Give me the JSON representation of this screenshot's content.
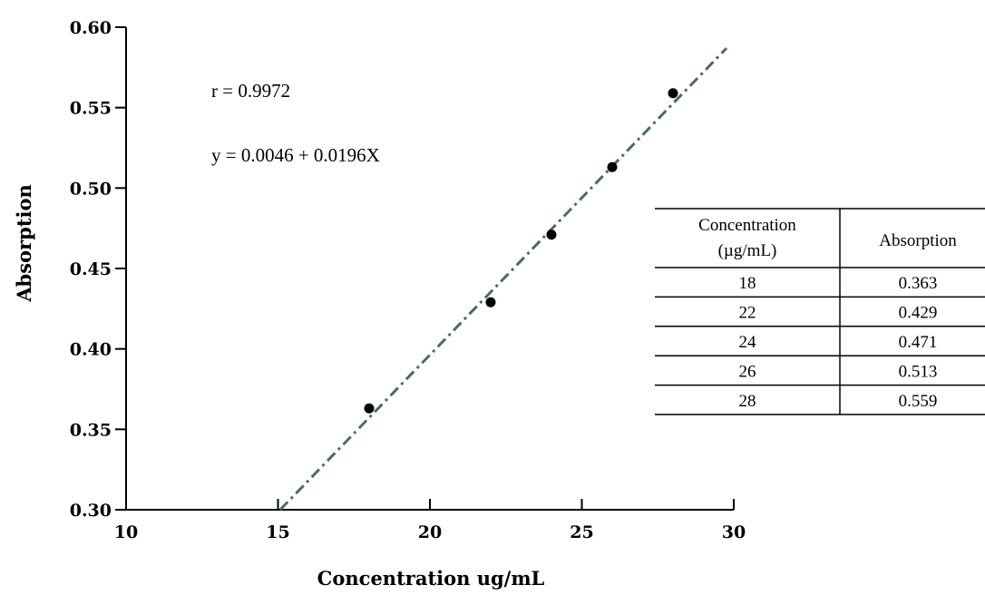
{
  "chart_data": {
    "type": "scatter",
    "x": [
      18,
      22,
      24,
      26,
      28
    ],
    "y": [
      0.363,
      0.429,
      0.471,
      0.513,
      0.559
    ],
    "title": "",
    "xlabel": "Concentration ug/mL",
    "ylabel": "Absorption",
    "xlim": [
      10,
      30
    ],
    "ylim": [
      0.3,
      0.6
    ],
    "xticks": [
      "10",
      "15",
      "20",
      "25",
      "30"
    ],
    "yticks": [
      "0.30",
      "0.35",
      "0.40",
      "0.45",
      "0.50",
      "0.55",
      "0.60"
    ],
    "grid": false,
    "fit_line": {
      "intercept": 0.0046,
      "slope": 0.0196,
      "x_range": [
        15,
        30
      ],
      "style": "dash-dot",
      "color": "#4a6b6b"
    },
    "annotations": {
      "r": "r = 0.9972",
      "equation": "y = 0.0046 + 0.0196X"
    },
    "table": {
      "headers": [
        "Concentration\n(µg/mL)",
        "Absorption"
      ],
      "header_col1_line1": "Concentration",
      "header_col1_line2": "(µg/mL)",
      "header_col2": "Absorption",
      "rows": [
        [
          "18",
          "0.363"
        ],
        [
          "22",
          "0.429"
        ],
        [
          "24",
          "0.471"
        ],
        [
          "26",
          "0.513"
        ],
        [
          "28",
          "0.559"
        ]
      ]
    }
  }
}
